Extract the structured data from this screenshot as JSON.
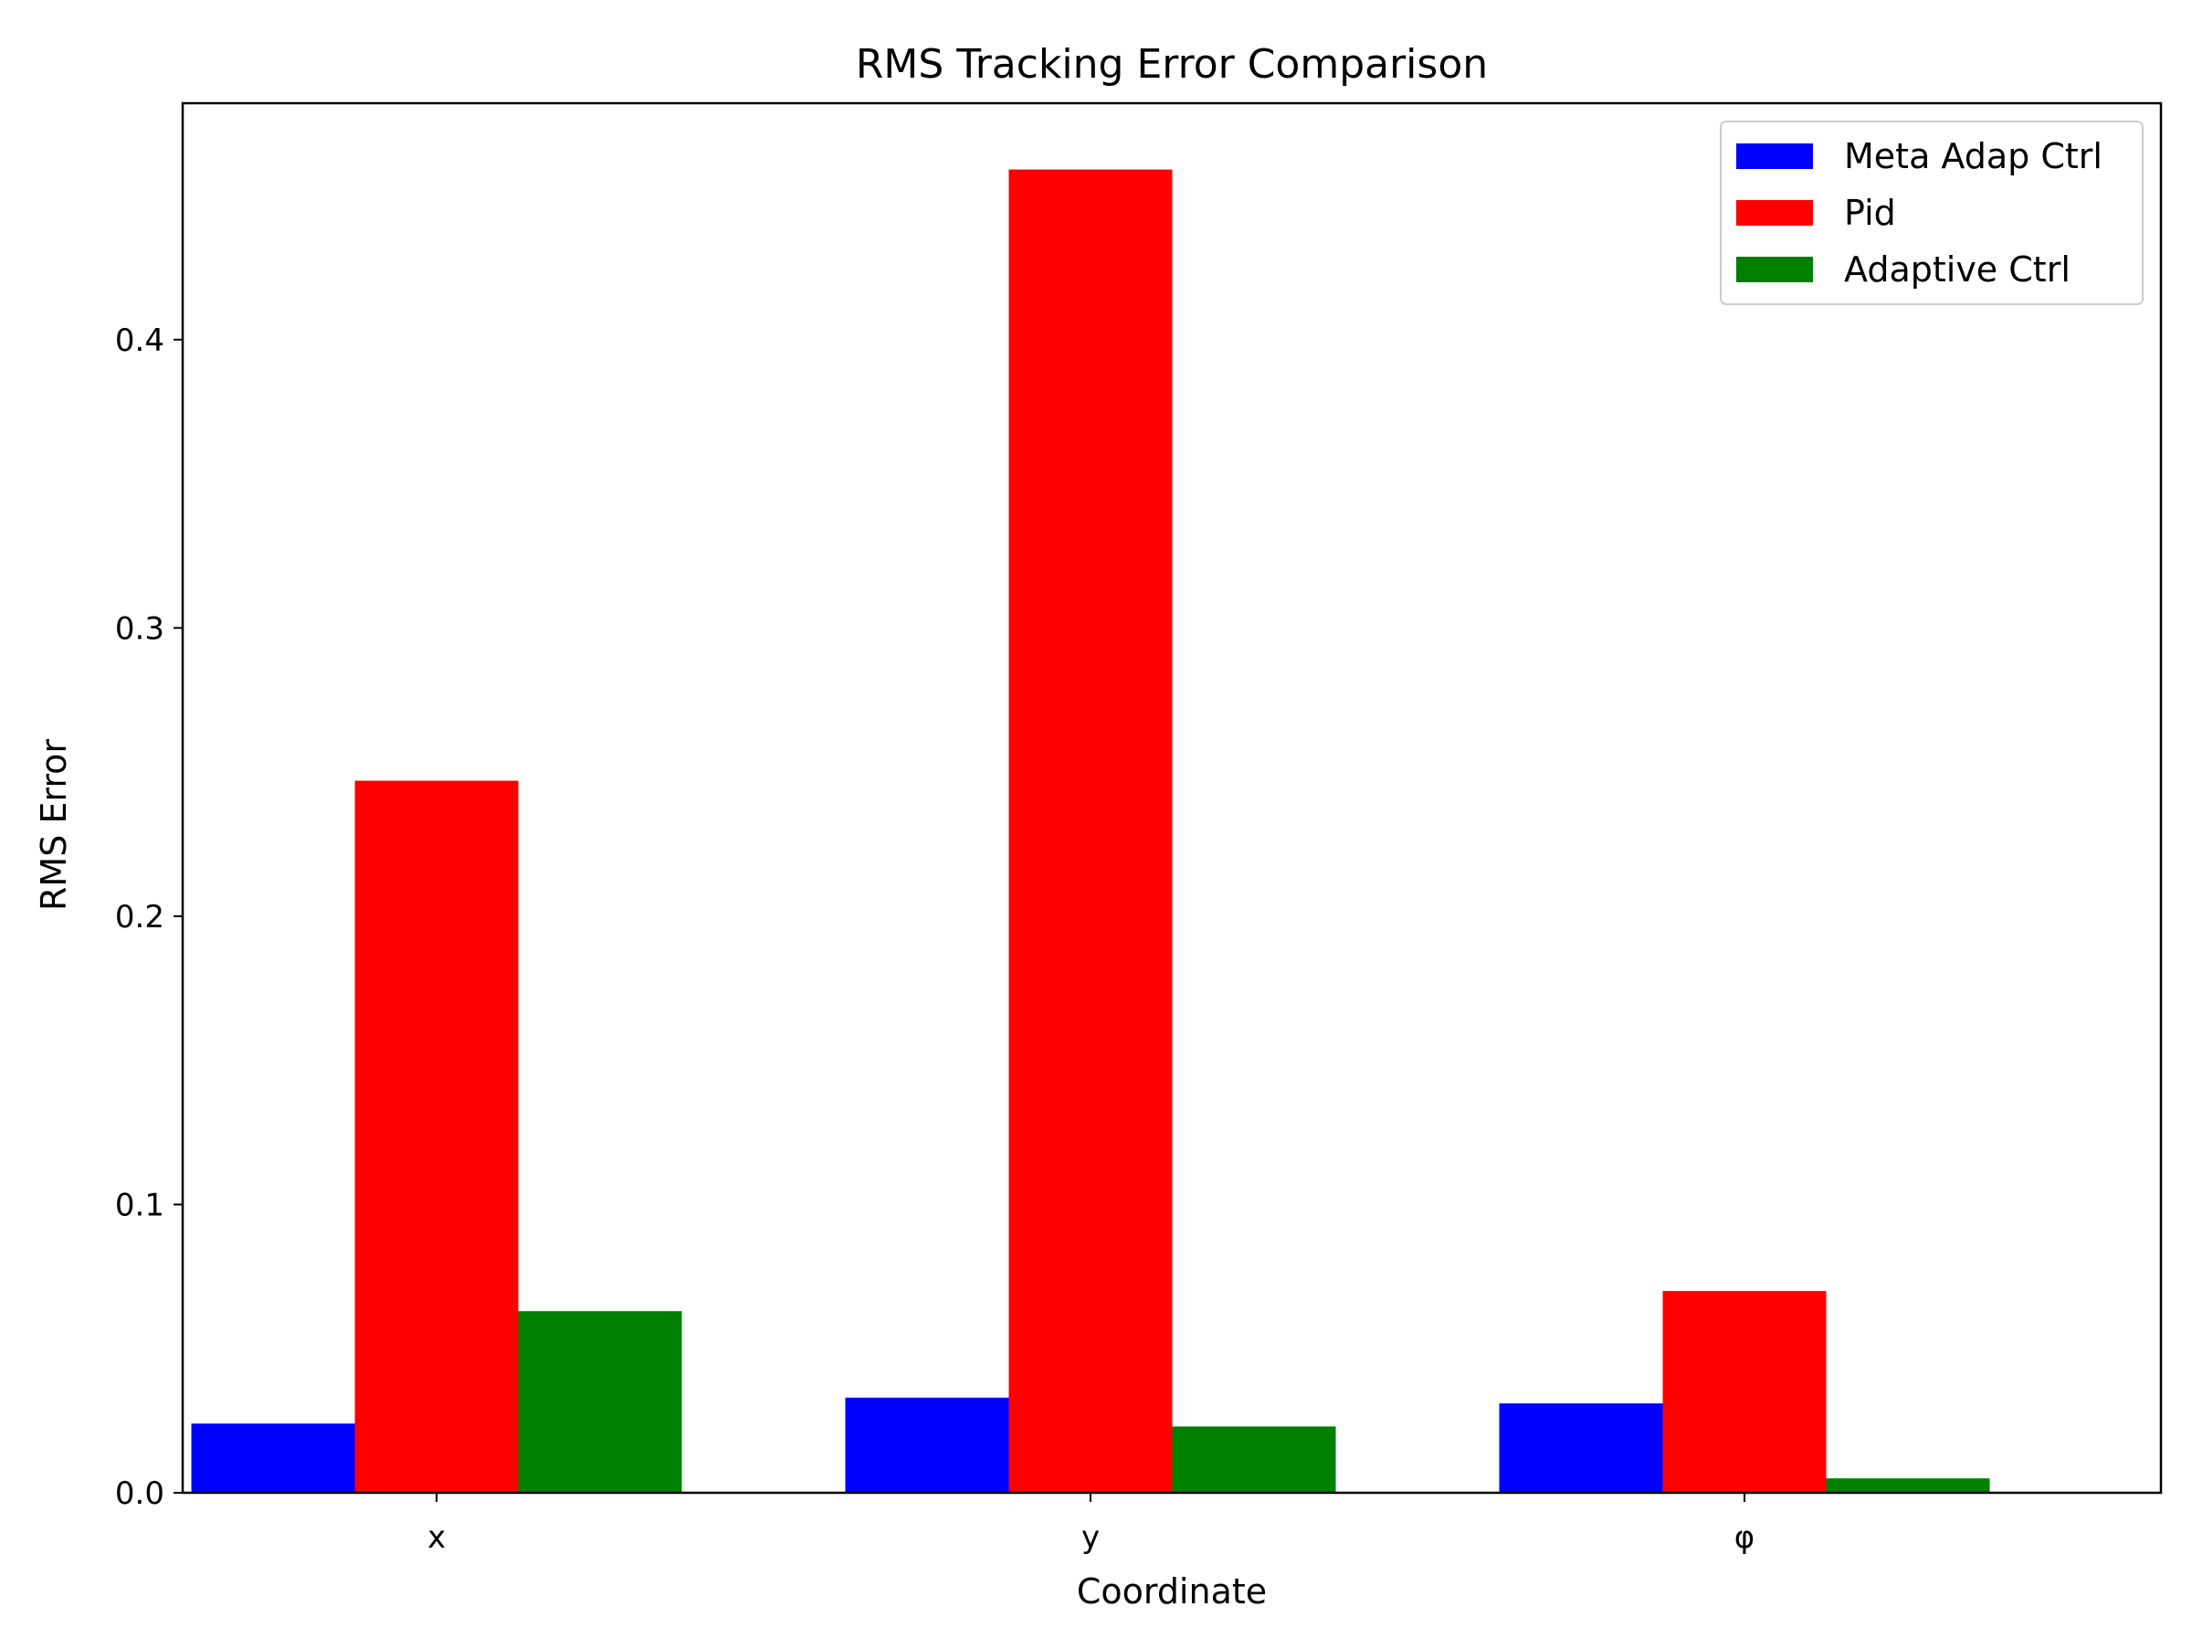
{
  "chart_data": {
    "type": "bar",
    "title": "RMS Tracking Error Comparison",
    "xlabel": "Coordinate",
    "ylabel": "RMS Error",
    "categories": [
      "x",
      "y",
      "φ"
    ],
    "series": [
      {
        "name": "Meta Adap Ctrl",
        "color": "#0000ff",
        "values": [
          0.024,
          0.033,
          0.031
        ]
      },
      {
        "name": "Pid",
        "color": "#ff0000",
        "values": [
          0.247,
          0.459,
          0.07
        ]
      },
      {
        "name": "Adaptive Ctrl",
        "color": "#008000",
        "values": [
          0.063,
          0.023,
          0.005
        ]
      }
    ],
    "ylim": [
      0,
      0.482
    ],
    "yticks": [
      0.0,
      0.1,
      0.2,
      0.3,
      0.4
    ],
    "ytick_labels": [
      "0.0",
      "0.1",
      "0.2",
      "0.3",
      "0.4"
    ],
    "grid": false,
    "legend_position": "top-right"
  }
}
